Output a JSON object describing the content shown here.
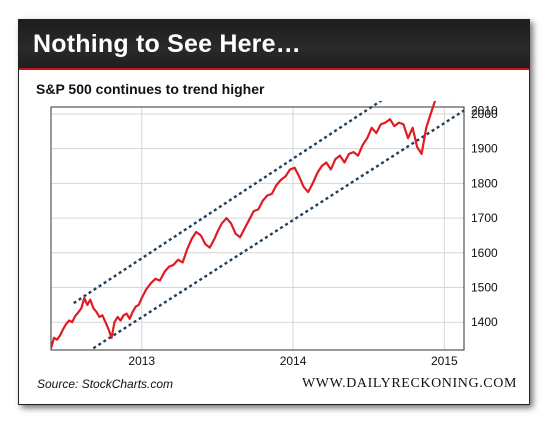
{
  "header": {
    "title": "Nothing to See Here…",
    "subtitle": "S&P 500 continues to trend higher"
  },
  "footer": {
    "source": "Source: StockCharts.com",
    "brand": "WWW.DAILYRECKONING.COM"
  },
  "colors": {
    "series": "#e11b22",
    "channel": "#1f3f5a",
    "accent": "#c7141c"
  },
  "chart_data": {
    "type": "line",
    "title": "S&P 500 continues to trend higher",
    "xlabel": "",
    "ylabel": "",
    "x_ticks": [
      {
        "label": "2013",
        "x": 2013.0
      },
      {
        "label": "2014",
        "x": 2014.0
      },
      {
        "label": "2015",
        "x": 2015.0
      }
    ],
    "y_ticks": [
      1400,
      1500,
      1600,
      1700,
      1800,
      1900,
      2000,
      2010
    ],
    "xlim": [
      2012.4,
      2015.13
    ],
    "ylim": [
      1320,
      2020
    ],
    "grid": true,
    "legend": "none",
    "series": [
      {
        "x": [
          2012.4,
          2012.42,
          2012.44,
          2012.46,
          2012.48,
          2012.5,
          2012.52,
          2012.54,
          2012.56,
          2012.58,
          2012.6,
          2012.62,
          2012.64,
          2012.66,
          2012.68,
          2012.7,
          2012.72,
          2012.74,
          2012.76,
          2012.78,
          2012.8,
          2012.82,
          2012.84,
          2012.86,
          2012.88,
          2012.9,
          2012.92,
          2012.94,
          2012.96,
          2012.98,
          2013.0,
          2013.03,
          2013.06,
          2013.09,
          2013.12,
          2013.15,
          2013.18,
          2013.21,
          2013.24,
          2013.27,
          2013.3,
          2013.33,
          2013.36,
          2013.39,
          2013.42,
          2013.45,
          2013.48,
          2013.5,
          2013.53,
          2013.56,
          2013.59,
          2013.62,
          2013.65,
          2013.68,
          2013.71,
          2013.74,
          2013.77,
          2013.8,
          2013.83,
          2013.86,
          2013.89,
          2013.92,
          2013.95,
          2013.98,
          2014.01,
          2014.04,
          2014.07,
          2014.1,
          2014.13,
          2014.16,
          2014.19,
          2014.22,
          2014.25,
          2014.28,
          2014.31,
          2014.34,
          2014.37,
          2014.4,
          2014.43,
          2014.46,
          2014.49,
          2014.52,
          2014.55,
          2014.58,
          2014.61,
          2014.64,
          2014.67,
          2014.7,
          2014.73,
          2014.76,
          2014.79,
          2014.82,
          2014.85,
          2014.88,
          2014.91,
          2014.94,
          2014.97,
          2015.0,
          2015.03,
          2015.06,
          2015.08,
          2015.1
        ],
        "values": [
          1325,
          1355,
          1350,
          1362,
          1380,
          1395,
          1405,
          1400,
          1418,
          1428,
          1440,
          1470,
          1450,
          1465,
          1440,
          1430,
          1415,
          1420,
          1400,
          1380,
          1355,
          1400,
          1415,
          1405,
          1420,
          1425,
          1410,
          1430,
          1445,
          1450,
          1470,
          1495,
          1512,
          1525,
          1520,
          1545,
          1560,
          1565,
          1580,
          1572,
          1610,
          1640,
          1660,
          1650,
          1625,
          1615,
          1640,
          1660,
          1685,
          1700,
          1685,
          1655,
          1645,
          1670,
          1695,
          1720,
          1725,
          1750,
          1765,
          1770,
          1795,
          1810,
          1820,
          1840,
          1845,
          1820,
          1790,
          1775,
          1800,
          1830,
          1850,
          1860,
          1840,
          1870,
          1880,
          1860,
          1885,
          1890,
          1880,
          1910,
          1930,
          1960,
          1945,
          1970,
          1975,
          1985,
          1965,
          1975,
          1970,
          1930,
          1960,
          1905,
          1885,
          1960,
          2000,
          2040,
          2060,
          2075,
          2060,
          2040,
          2050,
          2080
        ]
      }
    ],
    "channel_lines": [
      {
        "name": "upper",
        "from": [
          2012.55,
          1455
        ],
        "to": [
          2014.78,
          2095
        ]
      },
      {
        "name": "lower",
        "from": [
          2012.68,
          1325
        ],
        "to": [
          2015.13,
          2010
        ]
      }
    ]
  }
}
